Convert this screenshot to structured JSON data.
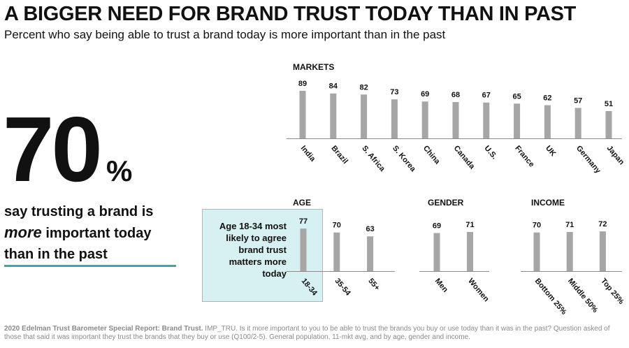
{
  "header": {
    "title": "A BIGGER NEED FOR BRAND TRUST TODAY THAN IN PAST",
    "subtitle": "Percent who say being able to trust a brand today is more important than in the past"
  },
  "stat": {
    "number": "70",
    "percent": "%",
    "line1": "say trusting a brand is",
    "emphasis": "more",
    "line2_rest": " important today",
    "line3": "than in the past"
  },
  "callout": {
    "text": "Age 18-34 most likely to agree brand trust matters more today"
  },
  "footnote": {
    "source": "2020 Edelman Trust Barometer Special Report: Brand Trust.",
    "text": " IMP_TRU. Is it more important to you to be able to trust the brands you buy or use today than it was in the past? Question asked of those that said it was important they trust the brands that they buy or use (Q100/2-5). General population, 11-mkt avg, and by age, gender and income."
  },
  "colors": {
    "bar": "#a6a6a6",
    "axis": "#8c8c8c",
    "accent": "#3aa6ad",
    "callout_fill": "#d7f0f1"
  },
  "chart_data": [
    {
      "type": "bar",
      "title": "MARKETS",
      "categories": [
        "India",
        "Brazil",
        "S. Africa",
        "S. Korea",
        "China",
        "Canada",
        "U.S.",
        "France",
        "UK",
        "Germany",
        "Japan"
      ],
      "values": [
        89,
        84,
        82,
        73,
        69,
        68,
        67,
        65,
        62,
        57,
        51
      ],
      "ylim": [
        0,
        100
      ],
      "grid": false,
      "value_labels": true
    },
    {
      "type": "bar",
      "title": "AGE",
      "categories": [
        "18-34",
        "35-54",
        "55+"
      ],
      "values": [
        77,
        70,
        63
      ],
      "ylim": [
        0,
        100
      ],
      "grid": false,
      "value_labels": true
    },
    {
      "type": "bar",
      "title": "GENDER",
      "categories": [
        "Men",
        "Women"
      ],
      "values": [
        69,
        71
      ],
      "ylim": [
        0,
        100
      ],
      "grid": false,
      "value_labels": true
    },
    {
      "type": "bar",
      "title": "INCOME",
      "categories": [
        "Bottom 25%",
        "Middle 50%",
        "Top 25%"
      ],
      "values": [
        70,
        71,
        72
      ],
      "ylim": [
        0,
        100
      ],
      "grid": false,
      "value_labels": true
    }
  ]
}
